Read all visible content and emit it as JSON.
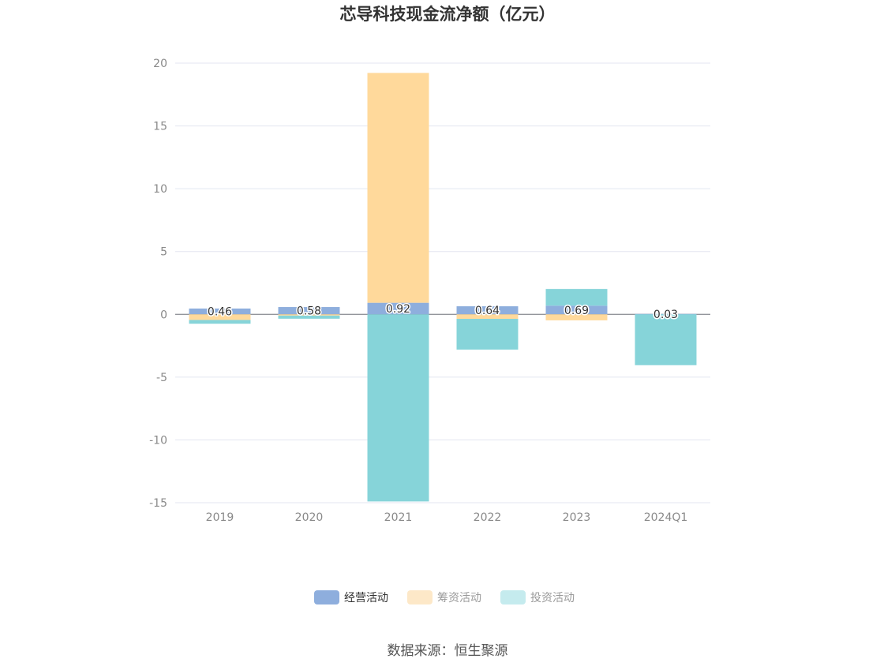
{
  "chart_data": {
    "type": "bar",
    "stacked": true,
    "title": "芯导科技现金流净额（亿元）",
    "categories": [
      "2019",
      "2020",
      "2021",
      "2022",
      "2023",
      "2024Q1"
    ],
    "series": [
      {
        "name": "经营活动",
        "color": "#8eaedd",
        "values": [
          0.46,
          0.58,
          0.92,
          0.64,
          0.69,
          0.03
        ]
      },
      {
        "name": "筹资活动",
        "color": "#ffd99b",
        "values": [
          -0.45,
          -0.1,
          18.3,
          -0.36,
          -0.48,
          0.0
        ]
      },
      {
        "name": "投资活动",
        "color": "#86d4d9",
        "values": [
          -0.3,
          -0.25,
          -14.9,
          -2.45,
          1.33,
          -4.05
        ]
      }
    ],
    "data_labels": [
      "0.46",
      "0.58",
      "0.92",
      "0.64",
      "0.69",
      "0.03"
    ],
    "ylim": [
      -15,
      20
    ],
    "yticks": [
      20,
      15,
      10,
      5,
      0,
      -5,
      -10,
      -15
    ],
    "grid": true,
    "legend_position": "bottom-center"
  },
  "legend": {
    "items": [
      {
        "label": "经营活动",
        "color": "#8eaedd",
        "active": true
      },
      {
        "label": "筹资活动",
        "color": "#fde8c8",
        "active": false
      },
      {
        "label": "投资活动",
        "color": "#c5ebee",
        "active": false
      }
    ]
  },
  "footer": {
    "source": "数据来源：恒生聚源"
  }
}
